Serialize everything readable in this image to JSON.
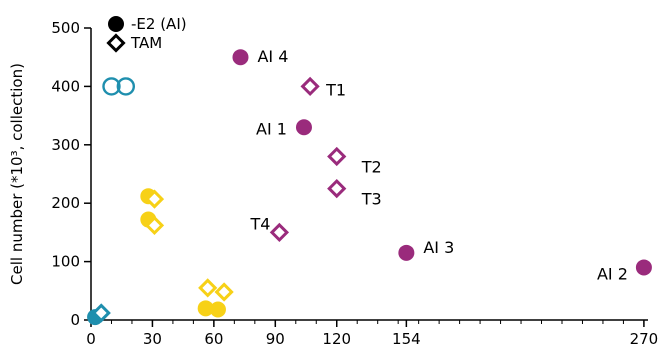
{
  "chart_data": {
    "type": "scatter",
    "title": "",
    "xlabel": "",
    "ylabel": "Cell number (*10³, collection)",
    "xlim": [
      0,
      272
    ],
    "ylim": [
      0,
      500
    ],
    "x_ticks": [
      0,
      30,
      60,
      90,
      120,
      154,
      270
    ],
    "y_ticks": [
      0,
      100,
      200,
      300,
      400,
      500
    ],
    "grid": false,
    "legend": {
      "placement": "top-left",
      "entries": [
        {
          "label": "-E2 (AI)",
          "marker": "filled-circle"
        },
        {
          "label": "TAM",
          "marker": "open-diamond"
        }
      ]
    },
    "colors": {
      "teal": "#1f8fae",
      "yellow": "#f7d117",
      "purple": "#9a2b7c",
      "axis": "#000000"
    },
    "points": [
      {
        "x": 2,
        "y": 5,
        "marker": "filled-circle",
        "color": "teal"
      },
      {
        "x": 5,
        "y": 12,
        "marker": "open-diamond",
        "color": "teal"
      },
      {
        "x": 10,
        "y": 400,
        "marker": "open-circle",
        "color": "teal"
      },
      {
        "x": 17,
        "y": 400,
        "marker": "open-circle",
        "color": "teal"
      },
      {
        "x": 28,
        "y": 212,
        "marker": "filled-circle",
        "color": "yellow"
      },
      {
        "x": 31,
        "y": 207,
        "marker": "open-diamond",
        "color": "yellow"
      },
      {
        "x": 28,
        "y": 172,
        "marker": "filled-circle",
        "color": "yellow"
      },
      {
        "x": 31,
        "y": 162,
        "marker": "open-diamond",
        "color": "yellow"
      },
      {
        "x": 56,
        "y": 20,
        "marker": "filled-circle",
        "color": "yellow"
      },
      {
        "x": 62,
        "y": 18,
        "marker": "filled-circle",
        "color": "yellow"
      },
      {
        "x": 57,
        "y": 55,
        "marker": "open-diamond",
        "color": "yellow"
      },
      {
        "x": 65,
        "y": 48,
        "marker": "open-diamond",
        "color": "yellow"
      },
      {
        "x": 73,
        "y": 450,
        "marker": "filled-circle",
        "color": "purple",
        "label": "AI 4"
      },
      {
        "x": 104,
        "y": 330,
        "marker": "filled-circle",
        "color": "purple",
        "label": "AI 1"
      },
      {
        "x": 154,
        "y": 115,
        "marker": "filled-circle",
        "color": "purple",
        "label": "AI 3"
      },
      {
        "x": 270,
        "y": 90,
        "marker": "filled-circle",
        "color": "purple",
        "label": "AI 2"
      },
      {
        "x": 107,
        "y": 400,
        "marker": "open-diamond",
        "color": "purple",
        "label": "T1"
      },
      {
        "x": 120,
        "y": 280,
        "marker": "open-diamond",
        "color": "purple",
        "label": "T2"
      },
      {
        "x": 120,
        "y": 225,
        "marker": "open-diamond",
        "color": "purple",
        "label": "T3"
      },
      {
        "x": 92,
        "y": 150,
        "marker": "open-diamond",
        "color": "purple",
        "label": "T4"
      }
    ]
  }
}
